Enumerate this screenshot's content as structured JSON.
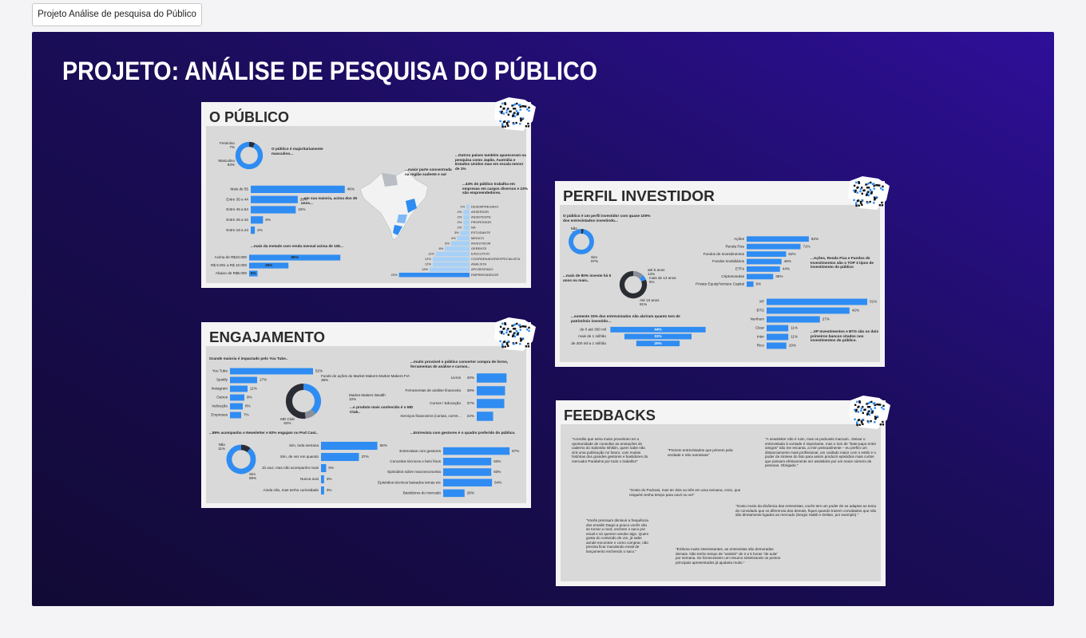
{
  "tab": "Projeto Análise de pesquisa do Público",
  "header": {
    "title": "PROJETO: ANÁLISE DE PESQUISA DO PÚBLICO"
  },
  "cards": [
    {
      "title": "O PÚBLICO",
      "charts": [
        {
          "type": "donut",
          "note": "O público é majoritariamente masculino...",
          "categories": [
            "Feminino",
            "Masculino"
          ],
          "values": [
            7,
            93
          ],
          "value_labels": [
            "7%",
            "93%"
          ],
          "colors": [
            "#2b2d35",
            "#2f8cf2"
          ]
        },
        {
          "type": "hbar",
          "note": "...em sua maioria, acima dos 35 anos...",
          "categories": [
            "Mais de 55",
            "Entre 35 e 44",
            "Entre 45 a 54",
            "Entre 25 a 34",
            "Entre 18 a 24"
          ],
          "values": [
            46,
            23,
            22,
            6,
            2
          ],
          "value_labels": [
            "46%",
            "23%",
            "22%",
            "6%",
            "2%"
          ],
          "color": "#2f8cf2",
          "xlim": [
            0,
            50
          ]
        },
        {
          "type": "hbar",
          "note": "...mais da metade com renda mensal acima de 10k...",
          "categories": [
            "Acima de R$10.000",
            "R$ 5.001 a R$ 10.000",
            "Abaixo de R$5.000"
          ],
          "values": [
            65,
            28,
            6
          ],
          "value_labels": [
            "65%",
            "28%",
            "6%"
          ],
          "color": "#2f8cf2",
          "xlim": [
            0,
            70
          ]
        },
        {
          "type": "rbar",
          "note": "...44% do público trabalha em empresas em cargos diversos e 23% são empreendedores.",
          "categories": [
            "DESEMPREGADO",
            "ASSESSOR",
            "ASSISTENTE",
            "PROFESSOR",
            "NA",
            "ESTUDANTE",
            "MEDICO",
            "INVESTIDOR",
            "GERENTE",
            "EXECUTIVO",
            "COORDENADOR/ESPECIALISTA",
            "ANALISTA",
            "APOSENTADO",
            "EMPREENDEDOR"
          ],
          "values": [
            1,
            2,
            2,
            2,
            2,
            3,
            4,
            6,
            8,
            11,
            12,
            12,
            13,
            23
          ],
          "value_labels": [
            "1%",
            "2%",
            "2%",
            "2%",
            "2%",
            "3%",
            "4%",
            "6%",
            "8%",
            "11%",
            "12%",
            "12%",
            "13%",
            "23%"
          ],
          "color": "#a6d0f7",
          "xlim": [
            0,
            25
          ]
        }
      ],
      "notes": [
        "...maior parte concentrada na região sudeste e sul",
        "...Outros países também apareceram na pesquisa como Japão, Austrália e Estados Unidos mas em escala menor de 1%"
      ]
    },
    {
      "title": "PERFIL INVESTIDOR",
      "charts": [
        {
          "type": "donut",
          "note": "O público é um perfil investidor com quase 100% dos entrevistados investindo...",
          "categories": [
            "Não",
            "Sim"
          ],
          "values": [
            3,
            97
          ],
          "value_labels": [
            "3%",
            "97%"
          ],
          "colors": [
            "#2b2d35",
            "#2f8cf2"
          ]
        },
        {
          "type": "donut",
          "note": "...mais de 80% investe há 5 anos ou mais..",
          "categories": [
            "até 5 anos",
            "mais de 13 anos",
            "Até 10 anos"
          ],
          "values": [
            13,
            6,
            81
          ],
          "value_labels": [
            "13%",
            "6%",
            "81%"
          ],
          "colors": [
            "#8a8f99",
            "#2f8cf2",
            "#2b2d35"
          ]
        },
        {
          "type": "funnel",
          "note": "...somente 15% dos entrevistados não abriram quanto tem de patrimônio investido...",
          "categories": [
            "de 0 até 300 mil",
            "mais de 1 milhão",
            "de 300 mil a 1 milhão"
          ],
          "values": [
            44,
            31,
            20
          ],
          "value_labels": [
            "44%",
            "31%",
            "20%"
          ],
          "color": "#2f8cf2",
          "xlim": [
            0,
            45
          ]
        },
        {
          "type": "hbar",
          "note": "...Ações, Renda Fixa e Fundos de Investimentos são o TOP 3 tipos de investimento do público",
          "categories": [
            "Ações",
            "Renda Fixa",
            "Fundos de Investimentos",
            "Fundos Imobiliários",
            "ETFs",
            "Criptomoedas",
            "Private Equity/Venture Capital"
          ],
          "values": [
            82,
            71,
            52,
            46,
            44,
            35,
            9
          ],
          "value_labels": [
            "82%",
            "71%",
            "52%",
            "46%",
            "44%",
            "35%",
            "9%"
          ],
          "color": "#2f8cf2",
          "xlim": [
            0,
            100
          ]
        },
        {
          "type": "hbar",
          "note": "...XP Investimentos e BTG são os dois primeiros bancos citados nos investimentos do público.",
          "categories": [
            "XP",
            "BTG",
            "Nenhum",
            "Clear",
            "Inter",
            "Rico"
          ],
          "values": [
            51,
            42,
            27,
            11,
            11,
            10
          ],
          "value_labels": [
            "51%",
            "42%",
            "27%",
            "11%",
            "11%",
            "10%"
          ],
          "color": "#2f8cf2",
          "xlim": [
            0,
            55
          ]
        }
      ]
    },
    {
      "title": "ENGAJAMENTO",
      "charts": [
        {
          "type": "hbar",
          "note": "Grande maioria é impactado pelo You Tube..",
          "categories": [
            "You Tube",
            "Spotify",
            "Instagram",
            "Outros",
            "Indicação",
            "Empresas"
          ],
          "values": [
            52,
            17,
            11,
            9,
            8,
            7
          ],
          "value_labels": [
            "52%",
            "17%",
            "11%",
            "9%",
            "8%",
            "7%"
          ],
          "color": "#2f8cf2",
          "xlim": [
            0,
            60
          ]
        },
        {
          "type": "donut",
          "note": "...o produto mais conhecido é o MD Club..",
          "categories": [
            "Fundo de ações do Market Makers Market Makers FIA",
            "Market Makers Wealth",
            "MD Club"
          ],
          "values": [
            38,
            10,
            52
          ],
          "value_labels": [
            "38%",
            "10%",
            "52%"
          ],
          "colors": [
            "#2f8cf2",
            "#8a8f99",
            "#2b2d35"
          ]
        },
        {
          "type": "hbar",
          "note": "...muito provável o público converter compra de livros, ferramentas de análise e cursos..",
          "categories": [
            "Livros",
            "Ferramentas de análise financeira",
            "Cursos / Educação",
            "Serviços financeiros (contas, corret..."
          ],
          "values": [
            40,
            38,
            37,
            22
          ],
          "value_labels": [
            "40%",
            "38%",
            "37%",
            "22%"
          ],
          "color": "#2f8cf2",
          "xlim": [
            0,
            45
          ]
        },
        {
          "type": "donut",
          "note": "...89% acompanha o Newsletter e 92% engajam no Pod Cast..",
          "categories": [
            "Não",
            "Sim"
          ],
          "values": [
            11,
            89
          ],
          "value_labels": [
            "11%",
            "89%"
          ],
          "colors": [
            "#2b2d35",
            "#2f8cf2"
          ]
        },
        {
          "type": "hbar",
          "categories": [
            "Sim, toda semana",
            "Sim, de vez em quando",
            "Já ouvi, mas não acompanho mais",
            "Nunca ouvi",
            "Ainda não, mas tenho curiosidade"
          ],
          "values": [
            55,
            37,
            5,
            3,
            3
          ],
          "value_labels": [
            "55%",
            "37%",
            "5%",
            "3%",
            "3%"
          ],
          "color": "#2f8cf2",
          "xlim": [
            0,
            60
          ]
        },
        {
          "type": "hbar",
          "note": "...Entrevista com gestores é o quadro preferido do público.",
          "categories": [
            "Entrevistas com gestores",
            "Conceitos técnicos e bem finos",
            "Episódios sobre macroeconomia",
            "Episódios técnicos baixados temas etc",
            "Bastidores do mercado"
          ],
          "values": [
            87,
            63,
            63,
            64,
            28
          ],
          "value_labels": [
            "87%",
            "63%",
            "63%",
            "64%",
            "28%"
          ],
          "color": "#2f8cf2",
          "xlim": [
            0,
            90
          ]
        }
      ]
    },
    {
      "title": "FEEDBACKS",
      "quotes": [
        "\"Acredito que seria muito proveitoso ter a oportunidade de consultar as anotações do caderno do Salomão Ishikiin, quem sabe não virá uma publicação no futuro, com muitas histórias dos grandes gestores e bastidores do mercado! Parabéns por todo o trabalho!\"",
        "\"Prezem entrevistados que primem pela verdade e não narrativas\"",
        "\"A newsletter não é ruim, mas os podcasts marcam.. Deixar o entrevistado à vontade é importante, mas o tom de \"bate-papo entre amigos\" não me encanta, a mim pessoalmente – eu prefiro um distanciamento mais profissional, um cuidado maior com o estilo e o poder de síntese do fato para assim produzir episódios mais curtos que possam efetivamente ser assistidos por um maior número de pessoas. Obrigado.\"",
        "\"Gosto do Podcast, mas ter dois ou três em uma semana, creio, que ninguém tenha tempo para ouvir ou ver\"",
        "\"Gosto muito da dinâmica das entrevistas, vocês tem um poder de se adaptar ao tema do convidado que os diferencia dos demais, fiquei quando trazem convidados que não são diretamente ligados ao mercado (Sergio Habib e Deltan, por exemplo) \"",
        "\"Vocês precisam diminuir a frequência dos emails! Daqui a pouco vocês vão se tornar a nord, enchem o saco por email e só querem vender algo. Quem gosta do conteúdo de vcs, já sabe aonde encontrar e como comprar, não precisa ficar mandando email de lançamento enchendo o saco.\"",
        "\"Embora muito interessantes, as entrevistas são demoradas demais. Não tenho tempo de \"assistir\" de 3 a 5 horas \"de aula\" por semana. Se fornecessem um resumo sintetizando os pontos principais apresentados já ajudaria muito.\""
      ]
    }
  ]
}
